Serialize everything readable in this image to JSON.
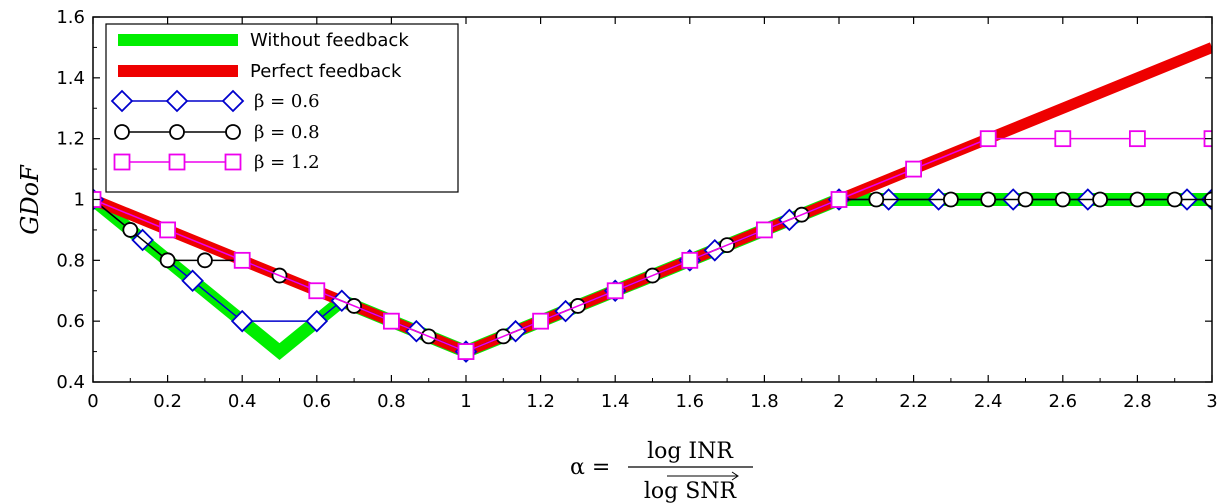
{
  "chart_data": {
    "type": "line",
    "ylabel": "GDoF",
    "xlabel": {
      "lhs": "α =",
      "numerator": "log INR",
      "denominator": "log SNR"
    },
    "xlim": [
      0,
      3
    ],
    "ylim": [
      0.4,
      1.6
    ],
    "xticks": [
      0,
      0.2,
      0.4,
      0.6,
      0.8,
      1,
      1.2,
      1.4,
      1.6,
      1.8,
      2,
      2.2,
      2.4,
      2.6,
      2.8,
      3
    ],
    "xtick_labels": [
      "0",
      "0.2",
      "0.4",
      "0.6",
      "0.8",
      "1",
      "1.2",
      "1.4",
      "1.6",
      "1.8",
      "2",
      "2.2",
      "2.4",
      "2.6",
      "2.8",
      "3"
    ],
    "yticks": [
      0.4,
      0.6,
      0.8,
      1.0,
      1.2,
      1.4,
      1.6
    ],
    "ytick_labels": [
      "0.4",
      "0.6",
      "0.8",
      "1",
      "1.2",
      "1.4",
      "1.6"
    ],
    "grid": false,
    "legend_position": "top-left",
    "series": [
      {
        "name": "Without feedback",
        "color": "#00ee00",
        "style": "thick-line",
        "x": [
          0,
          0.5,
          0.667,
          1,
          2,
          3
        ],
        "y": [
          1,
          0.5,
          0.667,
          0.5,
          1,
          1
        ]
      },
      {
        "name": "Perfect feedback",
        "color": "#ee0000",
        "style": "thick-line",
        "x": [
          0,
          1,
          3
        ],
        "y": [
          1,
          0.5,
          1.5
        ]
      },
      {
        "name": "β = 0.6",
        "color": "#0000cc",
        "marker": "diamond",
        "x": [
          0,
          0.133,
          0.267,
          0.4,
          0.6,
          0.667,
          0.867,
          1,
          1.133,
          1.267,
          1.4,
          1.6,
          1.667,
          1.867,
          2,
          2.133,
          2.267,
          2.467,
          2.667,
          2.933,
          3
        ],
        "y": [
          1,
          0.867,
          0.733,
          0.6,
          0.6,
          0.667,
          0.567,
          0.5,
          0.567,
          0.633,
          0.7,
          0.8,
          0.833,
          0.933,
          1,
          1,
          1,
          1,
          1,
          1,
          1
        ]
      },
      {
        "name": "β = 0.8",
        "color": "#000000",
        "marker": "circle",
        "x": [
          0,
          0.1,
          0.2,
          0.3,
          0.4,
          0.5,
          0.6,
          0.7,
          0.8,
          0.9,
          1,
          1.1,
          1.2,
          1.3,
          1.4,
          1.5,
          1.6,
          1.7,
          1.8,
          1.9,
          2,
          2.1,
          2.3,
          2.4,
          2.5,
          2.6,
          2.7,
          2.8,
          2.9,
          3
        ],
        "y": [
          1,
          0.9,
          0.8,
          0.8,
          0.8,
          0.75,
          0.7,
          0.65,
          0.6,
          0.55,
          0.5,
          0.55,
          0.6,
          0.65,
          0.7,
          0.75,
          0.8,
          0.85,
          0.9,
          0.95,
          1,
          1,
          1,
          1,
          1,
          1,
          1,
          1,
          1,
          1
        ]
      },
      {
        "name": "β = 1.2",
        "color": "#ee00ee",
        "marker": "square",
        "x": [
          0,
          0.2,
          0.4,
          0.6,
          0.8,
          1,
          1.2,
          1.4,
          1.6,
          1.8,
          2,
          2.2,
          2.4,
          2.6,
          2.8,
          3
        ],
        "y": [
          1,
          0.9,
          0.8,
          0.7,
          0.6,
          0.5,
          0.6,
          0.7,
          0.8,
          0.9,
          1,
          1.1,
          1.2,
          1.2,
          1.2,
          1.2
        ]
      }
    ]
  }
}
